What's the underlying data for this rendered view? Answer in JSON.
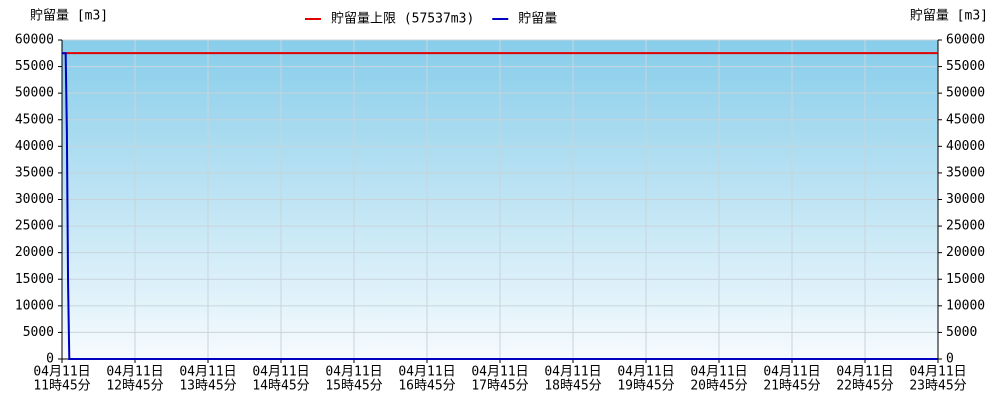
{
  "chart_data": {
    "type": "line",
    "ylabel": "貯留量 [m3]",
    "y2label": "貯留量 [m3]",
    "ylim": [
      0,
      60000
    ],
    "yticks": [
      0,
      5000,
      10000,
      15000,
      20000,
      25000,
      30000,
      35000,
      40000,
      45000,
      50000,
      55000,
      60000
    ],
    "y2lim": [
      0,
      60000
    ],
    "y2ticks": [
      0,
      5000,
      10000,
      15000,
      20000,
      25000,
      30000,
      35000,
      40000,
      45000,
      50000,
      55000,
      60000
    ],
    "xlim": [
      "11時45分",
      "23時45分"
    ],
    "xticks": [
      {
        "date": "04月11日",
        "time": "11時45分"
      },
      {
        "date": "04月11日",
        "time": "12時45分"
      },
      {
        "date": "04月11日",
        "time": "13時45分"
      },
      {
        "date": "04月11日",
        "time": "14時45分"
      },
      {
        "date": "04月11日",
        "time": "15時45分"
      },
      {
        "date": "04月11日",
        "time": "16時45分"
      },
      {
        "date": "04月11日",
        "time": "17時45分"
      },
      {
        "date": "04月11日",
        "time": "18時45分"
      },
      {
        "date": "04月11日",
        "time": "19時45分"
      },
      {
        "date": "04月11日",
        "time": "20時45分"
      },
      {
        "date": "04月11日",
        "time": "21時45分"
      },
      {
        "date": "04月11日",
        "time": "22時45分"
      },
      {
        "date": "04月11日",
        "time": "23時45分"
      }
    ],
    "grid": true,
    "series": [
      {
        "name": "貯留量上限 (57537m3)",
        "color": "#e00000",
        "x": [
          "11時45分",
          "23時45分"
        ],
        "values": [
          57537,
          57537
        ]
      },
      {
        "name": "貯留量",
        "color": "#0000c0",
        "x": [
          "11時45分",
          "11時48分",
          "11時49分",
          "11時50分",
          "11時51分",
          "23時45分"
        ],
        "values": [
          57500,
          57500,
          43000,
          14000,
          0,
          0
        ]
      }
    ]
  }
}
